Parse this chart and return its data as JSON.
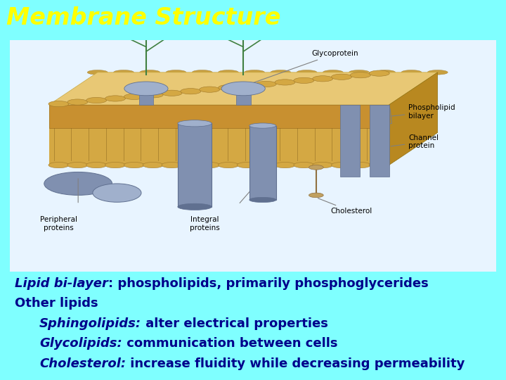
{
  "title": "Membrane Structure",
  "title_color": "#FFFF00",
  "title_bg_color": "#0000DD",
  "title_fontsize": 24,
  "bg_color": "#7FFFFF",
  "image_area_bg": "#FFFFFF",
  "text_lines": [
    {
      "text": "Lipid bi-layer",
      "style": "italic_bold",
      "color": "#00008B",
      "suffix": ": phospholipids, primarily phosphoglycerides",
      "indent": 0,
      "fontsize": 13
    },
    {
      "text": "Other lipids",
      "style": "bold",
      "color": "#00008B",
      "suffix": "",
      "indent": 0,
      "fontsize": 13
    },
    {
      "text": "Sphingolipids:",
      "style": "italic_bold",
      "color": "#00008B",
      "suffix": " alter electrical properties",
      "indent": 1,
      "fontsize": 13
    },
    {
      "text": "Glycolipids:",
      "style": "italic_bold",
      "color": "#00008B",
      "suffix": " communication between cells",
      "indent": 1,
      "fontsize": 13
    },
    {
      "text": "Cholesterol:",
      "style": "italic_bold",
      "color": "#00008B",
      "suffix": " increase fluidity while decreasing permeability",
      "indent": 1,
      "fontsize": 13
    }
  ],
  "figwidth": 7.2,
  "figheight": 5.4,
  "dpi": 100
}
